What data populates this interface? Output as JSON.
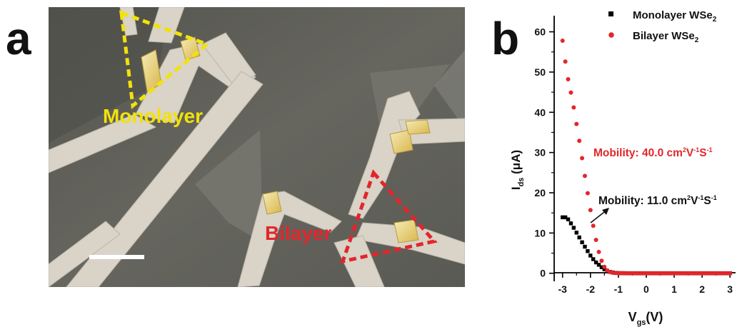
{
  "panel_a": {
    "label": "a",
    "monolayer_label": "Monolayer",
    "bilayer_label": "Bilayer",
    "colors": {
      "monolayer": "#f2e20a",
      "bilayer": "#e2262b",
      "substrate": "#5e5e58",
      "electrode": "#d9d3c8"
    }
  },
  "panel_b": {
    "label": "b"
  },
  "chart_data": {
    "type": "scatter",
    "xlabel": "V_gs(V)",
    "ylabel": "I_ds (μA)",
    "xlim": [
      -3.3,
      3.2
    ],
    "ylim": [
      -2,
      64
    ],
    "xticks": [
      -3,
      -2,
      -1,
      0,
      1,
      2,
      3
    ],
    "xtick_labels": [
      "-3",
      "-2",
      "-1",
      "0",
      "1",
      "2",
      "3"
    ],
    "yticks": [
      0,
      10,
      20,
      30,
      40,
      50,
      60
    ],
    "ytick_labels": [
      "0",
      "10",
      "20",
      "30",
      "40",
      "50",
      "60"
    ],
    "legend_position": "top-right",
    "series": [
      {
        "name": "Monolayer WSe2",
        "color": "#000000",
        "marker": "square",
        "x": [
          -3.0,
          -2.9,
          -2.8,
          -2.7,
          -2.6,
          -2.5,
          -2.4,
          -2.3,
          -2.2,
          -2.1,
          -2.0,
          -1.9,
          -1.8,
          -1.7,
          -1.6,
          -1.5,
          -1.4,
          -1.3,
          -1.2,
          -1.1,
          -1.0,
          -0.9,
          -0.8,
          -0.7,
          -0.6,
          -0.5,
          -0.4,
          -0.3,
          -0.2,
          -0.1,
          0.0,
          0.1,
          0.2,
          0.3,
          0.4,
          0.5,
          0.6,
          0.7,
          0.8,
          0.9,
          1.0,
          1.1,
          1.2,
          1.3,
          1.4,
          1.5,
          1.6,
          1.7,
          1.8,
          1.9,
          2.0,
          2.1,
          2.2,
          2.3,
          2.4,
          2.5,
          2.6,
          2.7,
          2.8,
          2.9,
          3.0
        ],
        "y": [
          13.9,
          13.9,
          13.4,
          12.4,
          11.3,
          10.1,
          8.9,
          7.7,
          6.6,
          5.5,
          4.4,
          3.5,
          2.7,
          2.1,
          1.5,
          1.0,
          0.6,
          0.35,
          0.2,
          0.1,
          0.05,
          0.03,
          0.02,
          0.01,
          0,
          0,
          0,
          0,
          0,
          0,
          0,
          0,
          0,
          0,
          0,
          0,
          0,
          0,
          0,
          0,
          0,
          0,
          0,
          0,
          0,
          0,
          0,
          0,
          0,
          0,
          0,
          0,
          0,
          0,
          0,
          0,
          0,
          0,
          0,
          0,
          0
        ]
      },
      {
        "name": "Bilayer WSe2",
        "color": "#e2262b",
        "marker": "circle",
        "x": [
          -3.0,
          -2.9,
          -2.8,
          -2.7,
          -2.6,
          -2.5,
          -2.4,
          -2.3,
          -2.2,
          -2.1,
          -2.0,
          -1.9,
          -1.8,
          -1.7,
          -1.6,
          -1.5,
          -1.4,
          -1.3,
          -1.2,
          -1.1,
          -1.0,
          -0.9,
          -0.8,
          -0.7,
          -0.6,
          -0.5,
          -0.4,
          -0.3,
          -0.2,
          -0.1,
          0.0,
          0.1,
          0.2,
          0.3,
          0.4,
          0.5,
          0.6,
          0.7,
          0.8,
          0.9,
          1.0,
          1.1,
          1.2,
          1.3,
          1.4,
          1.5,
          1.6,
          1.7,
          1.8,
          1.9,
          2.0,
          2.1,
          2.2,
          2.3,
          2.4,
          2.5,
          2.6,
          2.7,
          2.8,
          2.9,
          3.0
        ],
        "y": [
          57.8,
          52.6,
          48.2,
          44.9,
          41.2,
          37.1,
          32.9,
          28.6,
          24.2,
          19.9,
          15.7,
          11.8,
          8.3,
          5.3,
          3.1,
          1.6,
          0.7,
          0.3,
          0.12,
          0.06,
          0.03,
          0.02,
          0.01,
          0,
          0,
          0,
          0,
          0,
          0,
          0,
          0,
          0,
          0,
          0,
          0,
          0,
          0,
          0,
          0,
          0,
          0,
          0,
          0,
          0,
          0,
          0,
          0,
          0,
          0,
          0,
          0,
          0,
          0,
          0,
          0,
          0,
          0,
          0,
          0,
          0,
          0
        ]
      }
    ],
    "annotations": [
      {
        "text": "Mobility: 40.0 cm²V⁻¹S⁻¹",
        "color": "#e2262b",
        "x": -2.25,
        "y": 31
      },
      {
        "text": "Mobility: 11.0 cm²V⁻¹S⁻¹",
        "color": "#111111",
        "x": -1.85,
        "y": 13.5
      }
    ]
  }
}
